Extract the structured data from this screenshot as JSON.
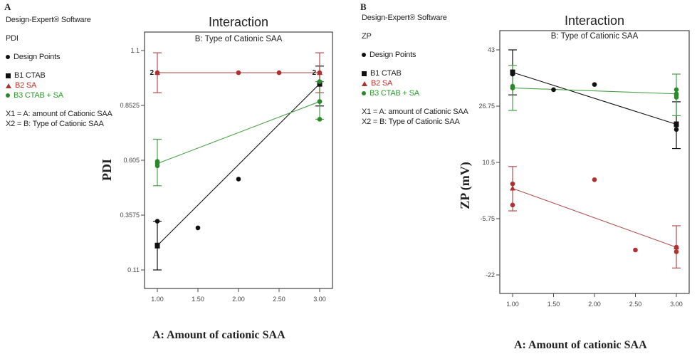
{
  "panels": [
    {
      "letter": "A",
      "software": "Design-Expert® Software",
      "response": "PDI",
      "design_points_label": "Design Points",
      "legend": [
        "B1 CTAB",
        "B2 SA",
        "B3 CTAB + SA"
      ],
      "factors": [
        "X1 = A: amount of Cationic SAA",
        "X2 = B: Type of Cationic SAA"
      ]
    },
    {
      "letter": "B",
      "software": "Design-Expert® Software",
      "response": "ZP",
      "design_points_label": "Design Points",
      "legend": [
        "B1 CTAB",
        "B2 SA",
        "B3 CTAB + SA"
      ],
      "factors": [
        "X1 = A: amount of Cationic SAA",
        "X2 = B: Type of Cationic SAA"
      ]
    }
  ],
  "colors": {
    "B1": "#111111",
    "B2": "#b03030",
    "B3": "#2a8a2a",
    "B2_line": "#b05050",
    "B3_line": "#4aa04a"
  },
  "chart_data": [
    {
      "type": "line",
      "title": "Interaction",
      "subtitle": "B: Type of Cationic SAA",
      "xlabel": "A: Amount of cationic SAA",
      "ylabel": "PDI",
      "xlim": [
        1.0,
        3.0
      ],
      "ylim": [
        0.11,
        1.1
      ],
      "xticks": [
        "1.00",
        "1.50",
        "2.00",
        "2.50",
        "3.00"
      ],
      "yticks": [
        "0.11",
        "0.3575",
        "0.605",
        "0.8525",
        "1.1"
      ],
      "grid": false,
      "legend_position": "left",
      "series": [
        {
          "name": "B1 CTAB",
          "line": [
            [
              1.0,
              0.22
            ],
            [
              3.0,
              0.95
            ]
          ],
          "ci": [
            [
              1.0,
              0.11,
              0.33
            ],
            [
              3.0,
              0.85,
              1.03
            ]
          ]
        },
        {
          "name": "B2 SA",
          "line": [
            [
              1.0,
              1.0
            ],
            [
              3.0,
              1.0
            ]
          ],
          "ci": [
            [
              1.0,
              0.91,
              1.09
            ],
            [
              3.0,
              0.91,
              1.09
            ]
          ]
        },
        {
          "name": "B3 CTAB + SA",
          "line": [
            [
              1.0,
              0.59
            ],
            [
              3.0,
              0.87
            ]
          ],
          "ci": [
            [
              1.0,
              0.49,
              0.7
            ],
            [
              3.0,
              0.79,
              0.96
            ]
          ]
        }
      ],
      "design_points": [
        {
          "x": 1.0,
          "y": 0.33,
          "group": "B1"
        },
        {
          "x": 1.5,
          "y": 0.3,
          "group": "B1"
        },
        {
          "x": 2.0,
          "y": 0.52,
          "group": "B1"
        },
        {
          "x": 1.0,
          "y": 1.0,
          "group": "B2",
          "count": 2
        },
        {
          "x": 2.0,
          "y": 1.0,
          "group": "B2"
        },
        {
          "x": 2.5,
          "y": 1.0,
          "group": "B2"
        },
        {
          "x": 3.0,
          "y": 1.0,
          "group": "B2",
          "count": 2
        },
        {
          "x": 1.0,
          "y": 0.6,
          "group": "B3"
        },
        {
          "x": 1.0,
          "y": 0.58,
          "group": "B3"
        },
        {
          "x": 3.0,
          "y": 0.96,
          "group": "B3"
        },
        {
          "x": 3.0,
          "y": 0.87,
          "group": "B3"
        },
        {
          "x": 3.0,
          "y": 0.79,
          "group": "B3"
        }
      ],
      "point_count_labels": [
        {
          "x": 1.0,
          "y": 1.0,
          "text": "2"
        },
        {
          "x": 3.0,
          "y": 1.0,
          "text": "2"
        }
      ]
    },
    {
      "type": "line",
      "title": "Interaction",
      "subtitle": "B: Type of Cationic SAA",
      "xlabel": "A: Amount of cationic SAA",
      "ylabel": "ZP (mV)",
      "xlim": [
        1.0,
        3.0
      ],
      "ylim": [
        -22,
        43
      ],
      "xticks": [
        "1.00",
        "1.50",
        "2.00",
        "2.50",
        "3.00"
      ],
      "yticks": [
        "-22",
        "-5.75",
        "10.5",
        "26.75",
        "43"
      ],
      "grid": false,
      "legend_position": "left",
      "series": [
        {
          "name": "B1 CTAB",
          "line": [
            [
              1.0,
              36.5
            ],
            [
              3.0,
              21.5
            ]
          ],
          "ci": [
            [
              1.0,
              30.0,
              43.0
            ],
            [
              3.0,
              14.5,
              28.0
            ]
          ]
        },
        {
          "name": "B2 SA",
          "line": [
            [
              1.0,
              3.0
            ],
            [
              3.0,
              -14.0
            ]
          ],
          "ci": [
            [
              1.0,
              -3.5,
              9.3
            ],
            [
              3.0,
              -7.8,
              -20.0
            ]
          ]
        },
        {
          "name": "B3 CTAB + SA",
          "line": [
            [
              1.0,
              32.0
            ],
            [
              3.0,
              30.3
            ]
          ],
          "ci": [
            [
              1.0,
              25.5,
              38.5
            ],
            [
              3.0,
              24.0,
              36.0
            ]
          ]
        }
      ],
      "design_points": [
        {
          "x": 1.0,
          "y": 36.0,
          "group": "B1"
        },
        {
          "x": 1.0,
          "y": 36.5,
          "group": "B1"
        },
        {
          "x": 1.5,
          "y": 31.5,
          "group": "B1"
        },
        {
          "x": 2.0,
          "y": 33.0,
          "group": "B1"
        },
        {
          "x": 3.0,
          "y": 21.5,
          "group": "B1"
        },
        {
          "x": 3.0,
          "y": 20.0,
          "group": "B1"
        },
        {
          "x": 1.0,
          "y": 4.3,
          "group": "B2"
        },
        {
          "x": 1.0,
          "y": -1.8,
          "group": "B2"
        },
        {
          "x": 2.0,
          "y": 5.5,
          "group": "B2"
        },
        {
          "x": 2.5,
          "y": -14.8,
          "group": "B2"
        },
        {
          "x": 3.0,
          "y": -14.0,
          "group": "B2"
        },
        {
          "x": 3.0,
          "y": -15.3,
          "group": "B2"
        },
        {
          "x": 1.0,
          "y": 32.0,
          "group": "B3"
        },
        {
          "x": 1.0,
          "y": 32.5,
          "group": "B3"
        },
        {
          "x": 3.0,
          "y": 31.5,
          "group": "B3"
        },
        {
          "x": 3.0,
          "y": 30.0,
          "group": "B3"
        },
        {
          "x": 3.0,
          "y": 29.3,
          "group": "B3"
        }
      ],
      "point_count_labels": []
    }
  ]
}
